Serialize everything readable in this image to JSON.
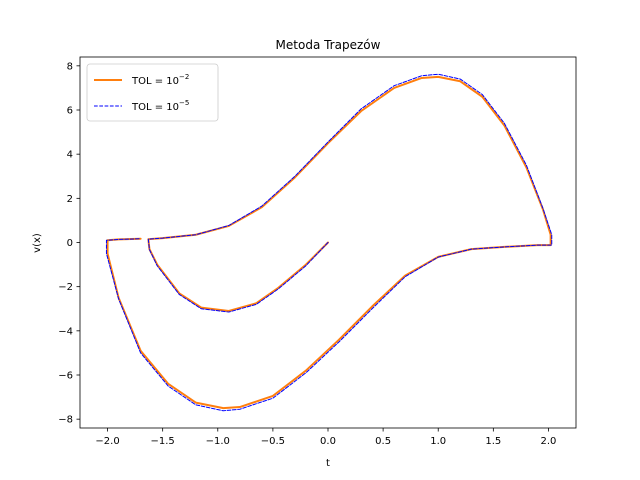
{
  "chart_data": {
    "type": "line",
    "title": "Metoda Trapezów",
    "xlabel": "t",
    "ylabel": "v(x)",
    "xlim": [
      -2.25,
      2.25
    ],
    "ylim": [
      -8.4,
      8.4
    ],
    "xticks": [
      -2.0,
      -1.5,
      -1.0,
      -0.5,
      0.0,
      0.5,
      1.0,
      1.5,
      2.0
    ],
    "xtick_labels": [
      "−2.0",
      "−1.5",
      "−1.0",
      "−0.5",
      "0.0",
      "0.5",
      "1.0",
      "1.5",
      "2.0"
    ],
    "yticks": [
      -8,
      -6,
      -4,
      -2,
      0,
      2,
      4,
      6,
      8
    ],
    "ytick_labels": [
      "−8",
      "−6",
      "−4",
      "−2",
      "0",
      "2",
      "4",
      "6",
      "8"
    ],
    "grid": false,
    "legend_position": "top-left",
    "series": [
      {
        "name": "TOL = 10^-2",
        "legend_base": "TOL = 10",
        "legend_exp": "−2",
        "color": "#ff7f0e",
        "style": "solid",
        "points": [
          [
            0.0,
            0.0
          ],
          [
            -0.2,
            -1.0
          ],
          [
            -0.45,
            -2.05
          ],
          [
            -0.65,
            -2.75
          ],
          [
            -0.9,
            -3.1
          ],
          [
            -1.15,
            -2.95
          ],
          [
            -1.35,
            -2.3
          ],
          [
            -1.55,
            -1.0
          ],
          [
            -1.62,
            -0.3
          ],
          [
            -1.63,
            0.15
          ],
          [
            -1.5,
            0.2
          ],
          [
            -1.2,
            0.35
          ],
          [
            -0.9,
            0.75
          ],
          [
            -0.6,
            1.6
          ],
          [
            -0.3,
            2.95
          ],
          [
            0.0,
            4.5
          ],
          [
            0.3,
            5.95
          ],
          [
            0.6,
            7.0
          ],
          [
            0.85,
            7.45
          ],
          [
            1.0,
            7.5
          ],
          [
            1.2,
            7.3
          ],
          [
            1.4,
            6.6
          ],
          [
            1.6,
            5.3
          ],
          [
            1.8,
            3.4
          ],
          [
            1.95,
            1.5
          ],
          [
            2.02,
            0.35
          ],
          [
            2.02,
            -0.12
          ],
          [
            1.9,
            -0.12
          ],
          [
            1.6,
            -0.2
          ],
          [
            1.3,
            -0.3
          ],
          [
            1.0,
            -0.65
          ],
          [
            0.7,
            -1.5
          ],
          [
            0.4,
            -2.9
          ],
          [
            0.1,
            -4.4
          ],
          [
            -0.2,
            -5.8
          ],
          [
            -0.5,
            -6.95
          ],
          [
            -0.8,
            -7.45
          ],
          [
            -0.95,
            -7.5
          ],
          [
            -1.2,
            -7.25
          ],
          [
            -1.45,
            -6.4
          ],
          [
            -1.7,
            -4.9
          ],
          [
            -1.9,
            -2.5
          ],
          [
            -2.0,
            -0.5
          ],
          [
            -2.0,
            0.1
          ],
          [
            -1.9,
            0.14
          ],
          [
            -1.7,
            0.17
          ]
        ]
      },
      {
        "name": "TOL = 10^-5",
        "legend_base": "TOL = 10",
        "legend_exp": "−5",
        "color": "#0000ff",
        "style": "dashed",
        "points": [
          [
            0.0,
            0.0
          ],
          [
            -0.2,
            -1.05
          ],
          [
            -0.45,
            -2.1
          ],
          [
            -0.65,
            -2.8
          ],
          [
            -0.9,
            -3.15
          ],
          [
            -1.15,
            -3.0
          ],
          [
            -1.35,
            -2.35
          ],
          [
            -1.55,
            -1.05
          ],
          [
            -1.62,
            -0.32
          ],
          [
            -1.63,
            0.15
          ],
          [
            -1.5,
            0.2
          ],
          [
            -1.2,
            0.35
          ],
          [
            -0.9,
            0.77
          ],
          [
            -0.6,
            1.65
          ],
          [
            -0.3,
            3.0
          ],
          [
            0.0,
            4.55
          ],
          [
            0.3,
            6.05
          ],
          [
            0.6,
            7.1
          ],
          [
            0.85,
            7.55
          ],
          [
            1.0,
            7.62
          ],
          [
            1.2,
            7.4
          ],
          [
            1.4,
            6.7
          ],
          [
            1.6,
            5.4
          ],
          [
            1.8,
            3.5
          ],
          [
            1.95,
            1.55
          ],
          [
            2.03,
            0.35
          ],
          [
            2.03,
            -0.12
          ],
          [
            1.9,
            -0.12
          ],
          [
            1.6,
            -0.2
          ],
          [
            1.3,
            -0.3
          ],
          [
            1.0,
            -0.66
          ],
          [
            0.7,
            -1.55
          ],
          [
            0.4,
            -3.0
          ],
          [
            0.1,
            -4.5
          ],
          [
            -0.2,
            -5.9
          ],
          [
            -0.5,
            -7.05
          ],
          [
            -0.8,
            -7.55
          ],
          [
            -0.95,
            -7.62
          ],
          [
            -1.2,
            -7.35
          ],
          [
            -1.45,
            -6.5
          ],
          [
            -1.7,
            -5.0
          ],
          [
            -1.9,
            -2.55
          ],
          [
            -2.01,
            -0.5
          ],
          [
            -2.01,
            0.1
          ],
          [
            -1.9,
            0.14
          ],
          [
            -1.7,
            0.17
          ]
        ]
      }
    ]
  }
}
